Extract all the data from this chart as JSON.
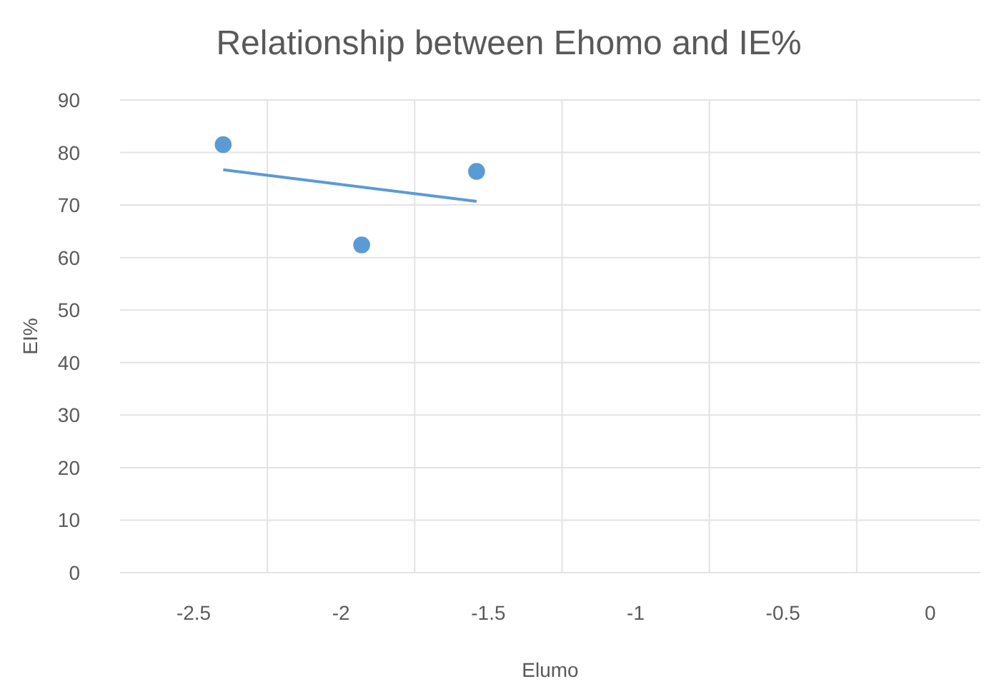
{
  "chart_data": {
    "type": "scatter",
    "title": "Relationship between Ehomo and IE%",
    "xlabel": "Elumo",
    "ylabel": "EI%",
    "series": [
      {
        "color": "#5b9bd5",
        "x": [
          -2.4,
          -1.93,
          -1.54
        ],
        "values": [
          81.5,
          62.4,
          76.4
        ]
      },
      {
        "type": "line",
        "marker": "none",
        "color": "#5b9bd5",
        "x": [
          -2.4,
          -1.54
        ],
        "values": [
          76.7,
          70.7
        ]
      }
    ],
    "xlim": [
      -2.75,
      0.17
    ],
    "xticks": [
      -2.5,
      -2,
      -1.5,
      -1,
      -0.5,
      0,
      {
        "value": -2.25,
        "label": null
      },
      {
        "value": -1.75,
        "label": null
      },
      {
        "value": -1.25,
        "label": null
      },
      {
        "value": -0.75,
        "label": null
      },
      {
        "value": -0.25,
        "label": null
      }
    ],
    "ylim": [
      0,
      90
    ],
    "yticks": [
      0,
      10,
      20,
      30,
      40,
      50,
      60,
      70,
      80,
      90
    ],
    "grid": true,
    "marker": "circle"
  }
}
